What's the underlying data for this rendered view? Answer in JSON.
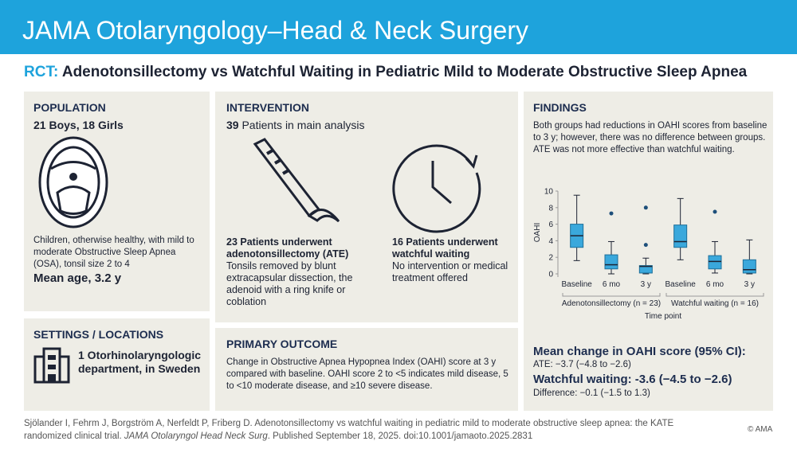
{
  "header": {
    "journal": "JAMA Otolaryngology–Head & Neck Surgery",
    "label": "RCT:",
    "title": "Adenotonsillectomy vs Watchful Waiting in Pediatric Mild to Moderate Obstructive Sleep Apnea"
  },
  "population": {
    "heading": "POPULATION",
    "counts": "21 Boys, 18 Girls",
    "description": "Children, otherwise healthy, with mild to moderate Obstructive Sleep Apnea (OSA), tonsil size 2 to 4",
    "age": "Mean age, 3.2 y"
  },
  "settings": {
    "heading": "SETTINGS / LOCATIONS",
    "text": "1 Otorhinolaryngologic department, in Sweden"
  },
  "intervention": {
    "heading": "INTERVENTION",
    "count": "39",
    "count_text": " Patients in main analysis",
    "arms": [
      {
        "count": "23",
        "title": " Patients underwent adenotonsillectomy (ATE)",
        "text": "Tonsils removed by blunt extracapsular dissection, the adenoid with a ring knife or coblation"
      },
      {
        "count": "16",
        "title": " Patients underwent watchful waiting",
        "text": "No intervention or medical treatment offered"
      }
    ]
  },
  "primary_outcome": {
    "heading": "PRIMARY OUTCOME",
    "text": "Change in Obstructive Apnea Hypopnea Index (OAHI) score at 3 y compared with baseline. OAHI score 2 to <5 indicates mild disease, 5 to <10 moderate disease, and ≥10 severe disease."
  },
  "findings": {
    "heading": "FINDINGS",
    "text": "Both groups had reductions in OAHI scores from baseline to 3 y; however, there was no difference between groups. ATE was not more effective than watchful waiting.",
    "mean_heading": "Mean change in OAHI score (95% CI):",
    "ate": "ATE: −3.7 (−4.8 to −2.6)",
    "ww": "Watchful waiting: -3.6 (−4.5 to −2.6)",
    "difference": "Difference: −0.1 (−1.5 to 1.3)"
  },
  "chart_data": {
    "type": "box",
    "xlabel": "Time point",
    "ylabel": "OAHI",
    "color": "#3aa8dc",
    "categories": [
      "Baseline",
      "6 mo",
      "3 y",
      "Baseline",
      "6 mo",
      "3 y"
    ],
    "groups": [
      "Adenotonsillectomy (n = 23)",
      "Watchful waiting (n = 16)"
    ],
    "boxes": [
      {
        "low": 1.6,
        "q1": 3.2,
        "median": 4.6,
        "q3": 6.0,
        "high": 9.5,
        "outliers": []
      },
      {
        "low": 0,
        "q1": 0.6,
        "median": 1.1,
        "q3": 2.3,
        "high": 3.9,
        "outliers": [
          7.3
        ]
      },
      {
        "low": 0,
        "q1": 0.1,
        "median": 0.9,
        "q3": 1.0,
        "high": 1.9,
        "outliers": [
          8.0,
          3.5
        ]
      },
      {
        "low": 1.7,
        "q1": 3.2,
        "median": 3.9,
        "q3": 5.9,
        "high": 9.1,
        "outliers": []
      },
      {
        "low": 0.1,
        "q1": 0.6,
        "median": 1.5,
        "q3": 2.2,
        "high": 3.9,
        "outliers": [
          7.5
        ]
      },
      {
        "low": 0,
        "q1": 0.1,
        "median": 0.5,
        "q3": 1.7,
        "high": 4.1,
        "outliers": []
      }
    ],
    "ylim": [
      0,
      10
    ],
    "yticks": [
      0,
      2,
      4,
      6,
      8,
      10
    ]
  },
  "footer": {
    "citation": "Sjölander I, Fehrm J, Borgström A, Nerfeldt P, Friberg D. Adenotonsillectomy vs watchful waiting in pediatric mild to moderate obstructive sleep apnea: the KATE randomized clinical trial.",
    "journal": "JAMA Otolaryngol Head Neck Surg",
    "published": ". Published September 18, 2025. doi:10.1001/jamaoto.2025.2831",
    "copyright": "© AMA"
  }
}
